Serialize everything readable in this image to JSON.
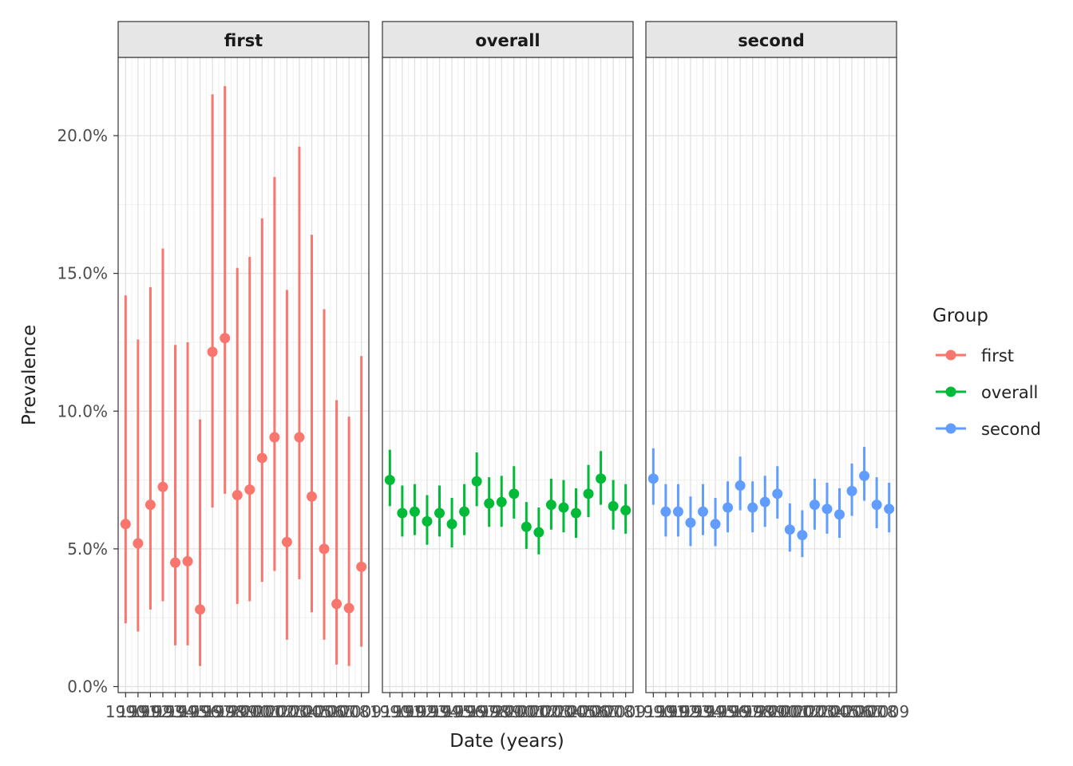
{
  "chart_data": {
    "type": "pointrange",
    "xlabel": "Date (years)",
    "ylabel": "Prevalence",
    "ylim": [
      0,
      0.22
    ],
    "yticks": [
      0,
      0.05,
      0.1,
      0.15,
      0.2
    ],
    "ytick_labels": [
      "0.0%",
      "5.0%",
      "10.0%",
      "15.0%",
      "20.0%"
    ],
    "x": [
      1990,
      1991,
      1992,
      1993,
      1994,
      1995,
      1996,
      1997,
      1998,
      1999,
      2000,
      2001,
      2002,
      2003,
      2004,
      2005,
      2006,
      2007,
      2008,
      2009
    ],
    "xtick_labels": [
      "1990",
      "1991",
      "1992",
      "1993",
      "1994",
      "1995",
      "1996",
      "1997",
      "1998",
      "1999",
      "2000",
      "2001",
      "2002",
      "2003",
      "2004",
      "2005",
      "2006",
      "2007",
      "2008",
      "2009"
    ],
    "grid": true,
    "legend": {
      "title": "Group",
      "position": "right"
    },
    "panels": [
      {
        "name": "first",
        "color": "#F8766D",
        "y": [
          0.059,
          0.052,
          0.066,
          0.0725,
          0.045,
          0.0455,
          0.028,
          0.1215,
          0.1265,
          0.0695,
          0.0715,
          0.083,
          0.0905,
          0.0525,
          0.0905,
          0.069,
          0.05,
          0.03,
          0.0285,
          0.0435
        ],
        "lower": [
          0.023,
          0.02,
          0.028,
          0.031,
          0.015,
          0.015,
          0.0075,
          0.065,
          0.07,
          0.03,
          0.031,
          0.038,
          0.042,
          0.017,
          0.039,
          0.027,
          0.017,
          0.008,
          0.0075,
          0.0145
        ],
        "upper": [
          0.142,
          0.126,
          0.145,
          0.159,
          0.124,
          0.125,
          0.097,
          0.215,
          0.218,
          0.152,
          0.156,
          0.17,
          0.185,
          0.144,
          0.196,
          0.164,
          0.137,
          0.104,
          0.098,
          0.12
        ]
      },
      {
        "name": "overall",
        "color": "#00BA38",
        "y": [
          0.075,
          0.063,
          0.0635,
          0.06,
          0.063,
          0.059,
          0.0635,
          0.0745,
          0.0665,
          0.067,
          0.07,
          0.058,
          0.056,
          0.066,
          0.065,
          0.063,
          0.07,
          0.0755,
          0.0655,
          0.064
        ],
        "lower": [
          0.0655,
          0.0545,
          0.055,
          0.0515,
          0.0545,
          0.0505,
          0.055,
          0.0655,
          0.058,
          0.058,
          0.061,
          0.05,
          0.048,
          0.057,
          0.056,
          0.054,
          0.0615,
          0.066,
          0.057,
          0.0555
        ],
        "upper": [
          0.086,
          0.073,
          0.0735,
          0.0695,
          0.073,
          0.0685,
          0.0735,
          0.085,
          0.076,
          0.0765,
          0.08,
          0.067,
          0.065,
          0.0755,
          0.075,
          0.072,
          0.0805,
          0.0855,
          0.075,
          0.0735
        ]
      },
      {
        "name": "second",
        "color": "#619CFF",
        "y": [
          0.0755,
          0.0635,
          0.0635,
          0.0595,
          0.0635,
          0.059,
          0.065,
          0.073,
          0.065,
          0.067,
          0.07,
          0.057,
          0.055,
          0.066,
          0.0645,
          0.0625,
          0.071,
          0.0765,
          0.066,
          0.0645
        ],
        "lower": [
          0.066,
          0.0545,
          0.0545,
          0.051,
          0.055,
          0.051,
          0.056,
          0.064,
          0.056,
          0.058,
          0.061,
          0.049,
          0.047,
          0.057,
          0.0555,
          0.054,
          0.062,
          0.0675,
          0.0575,
          0.056
        ],
        "upper": [
          0.0865,
          0.0735,
          0.0735,
          0.069,
          0.0735,
          0.0685,
          0.0745,
          0.0835,
          0.0745,
          0.0765,
          0.08,
          0.0665,
          0.064,
          0.0755,
          0.074,
          0.072,
          0.081,
          0.087,
          0.076,
          0.074
        ]
      }
    ]
  }
}
